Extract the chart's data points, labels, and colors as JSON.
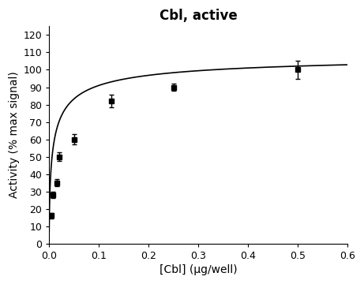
{
  "title": "Cbl, active",
  "xlabel": "[Cbl] (μg/well)",
  "ylabel": "Activity (% max signal)",
  "xlim": [
    0,
    0.6
  ],
  "ylim": [
    0,
    125
  ],
  "yticks": [
    0,
    10,
    20,
    30,
    40,
    50,
    60,
    70,
    80,
    90,
    100,
    110,
    120
  ],
  "xticks": [
    0.0,
    0.1,
    0.2,
    0.3,
    0.4,
    0.5,
    0.6
  ],
  "data_x": [
    0.004,
    0.008,
    0.016,
    0.02,
    0.05,
    0.125,
    0.25,
    0.5
  ],
  "data_y": [
    16.0,
    28.0,
    35.0,
    50.0,
    60.0,
    82.0,
    90.0,
    100.0
  ],
  "data_yerr": [
    1.5,
    2.0,
    2.0,
    2.5,
    3.0,
    3.5,
    2.0,
    5.0
  ],
  "Vmax": 110.0,
  "Km": 0.008,
  "n": 0.62,
  "line_color": "#000000",
  "marker_color": "#000000",
  "bg_color": "#ffffff",
  "title_fontsize": 12,
  "label_fontsize": 10,
  "tick_fontsize": 9
}
